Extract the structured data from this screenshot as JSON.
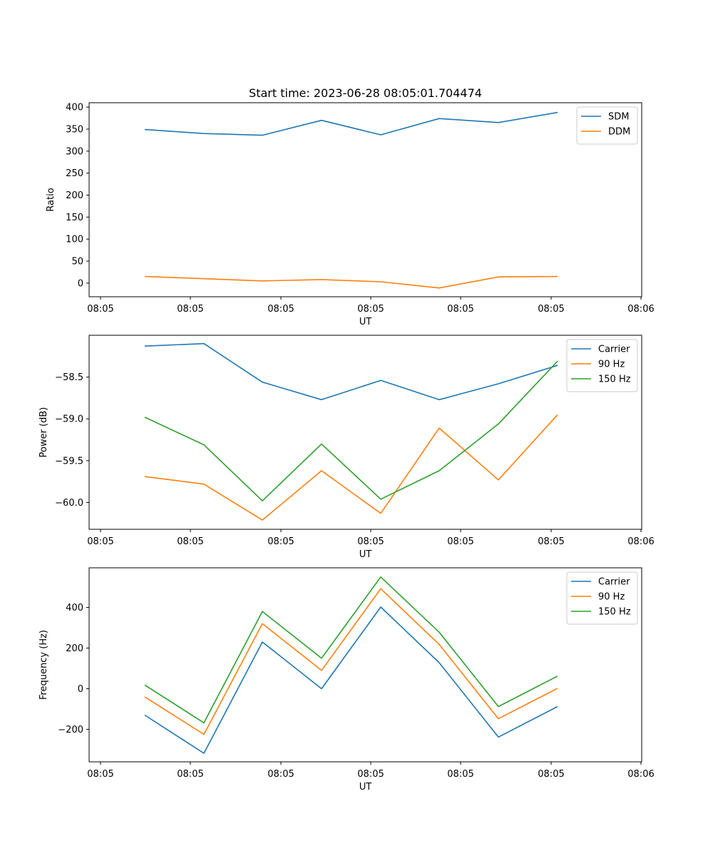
{
  "chart_data": [
    {
      "type": "line",
      "title": "Start time: 2023-06-28 08:05:01.704474",
      "xlabel": "UT",
      "ylabel": "Ratio",
      "x_tick_labels": [
        "08:05",
        "08:05",
        "08:05",
        "08:05",
        "08:05",
        "08:05",
        "08:06"
      ],
      "y_ticks": [
        0,
        50,
        100,
        150,
        200,
        250,
        300,
        350,
        400
      ],
      "ylim": [
        -31,
        410
      ],
      "legend_position": "top-right",
      "series": [
        {
          "name": "SDM",
          "color": "#1f77b4",
          "values": [
            349,
            340,
            336,
            370,
            337,
            374,
            365,
            388
          ]
        },
        {
          "name": "DDM",
          "color": "#ff7f0e",
          "values": [
            15,
            10,
            5,
            8,
            3,
            -11,
            14,
            15
          ]
        }
      ]
    },
    {
      "type": "line",
      "title": "",
      "xlabel": "UT",
      "ylabel": "Power (dB)",
      "x_tick_labels": [
        "08:05",
        "08:05",
        "08:05",
        "08:05",
        "08:05",
        "08:05",
        "08:06"
      ],
      "y_ticks": [
        -60.0,
        -59.5,
        -59.0,
        -58.5
      ],
      "y_tick_labels": [
        "−60.0",
        "−59.5",
        "−59.0",
        "−58.5"
      ],
      "ylim": [
        -60.32,
        -58.0
      ],
      "legend_position": "top-right",
      "series": [
        {
          "name": "Carrier",
          "color": "#1f77b4",
          "values": [
            -58.13,
            -58.1,
            -58.56,
            -58.77,
            -58.54,
            -58.77,
            -58.58,
            -58.36
          ]
        },
        {
          "name": "90 Hz",
          "color": "#ff7f0e",
          "values": [
            -59.69,
            -59.78,
            -60.21,
            -59.62,
            -60.13,
            -59.11,
            -59.73,
            -58.95
          ]
        },
        {
          "name": "150 Hz",
          "color": "#2ca02c",
          "values": [
            -58.98,
            -59.31,
            -59.98,
            -59.3,
            -59.96,
            -59.62,
            -59.06,
            -58.31
          ]
        }
      ]
    },
    {
      "type": "line",
      "title": "",
      "xlabel": "UT",
      "ylabel": "Frequency (Hz)",
      "x_tick_labels": [
        "08:05",
        "08:05",
        "08:05",
        "08:05",
        "08:05",
        "08:05",
        "08:06"
      ],
      "y_ticks": [
        -200,
        0,
        200,
        400
      ],
      "y_tick_labels": [
        "−200",
        "0",
        "200",
        "400"
      ],
      "ylim": [
        -360,
        595
      ],
      "legend_position": "top-right",
      "series": [
        {
          "name": "Carrier",
          "color": "#1f77b4",
          "values": [
            -130,
            -318,
            230,
            0,
            402,
            128,
            -238,
            -88
          ]
        },
        {
          "name": "90 Hz",
          "color": "#ff7f0e",
          "values": [
            -40,
            -225,
            320,
            90,
            492,
            218,
            -148,
            2
          ]
        },
        {
          "name": "150 Hz",
          "color": "#2ca02c",
          "values": [
            18,
            -168,
            380,
            150,
            550,
            278,
            -88,
            62
          ]
        }
      ]
    }
  ]
}
